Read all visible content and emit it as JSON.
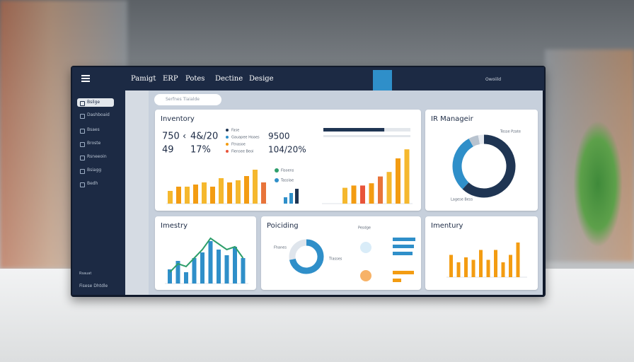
{
  "header": {
    "nav": [
      "Pamigt",
      "ERP",
      "Potes",
      "Dectine",
      "Desige"
    ],
    "user": "Owoiild"
  },
  "sidebar": {
    "items": [
      "Bsilge",
      "Dashboaid",
      "Bsaes",
      "Broste",
      "Rsneeoin",
      "Bsiagg",
      "Bedh"
    ],
    "footer": "Fisese Dhtdle",
    "footer_top": "Rsauat"
  },
  "search": {
    "placeholder": "Serfnes Tiaialde"
  },
  "panels": [
    {
      "title": "Inventory",
      "stats": [
        "750 ‹",
        "4&/20",
        "49",
        "17%"
      ],
      "kpis": [
        "9500",
        "104/20%"
      ],
      "legend": [
        {
          "name": "Fase",
          "color": "#1f3553"
        },
        {
          "name": "Gauapee Hoaes",
          "color": "#2f8fc9"
        },
        {
          "name": "Ftnasoe",
          "color": "#f39c12"
        },
        {
          "name": "Fiensee Beoi",
          "color": "#e8543a"
        }
      ],
      "progress": [
        70,
        100
      ],
      "bars_left": {
        "color": "#f4a623",
        "values": [
          6,
          8,
          8,
          9,
          10,
          8,
          12,
          10,
          11,
          13,
          16,
          10
        ]
      },
      "legend2": [
        {
          "name": "Fisoens",
          "color": "#2e9e6b"
        },
        {
          "name": "Tasslae",
          "color": "#2f8fc9"
        }
      ],
      "bars_small": {
        "color": "#1f3553",
        "values": [
          3,
          5,
          7
        ]
      },
      "bars_right": {
        "color": "#f5b82e",
        "values": [
          7,
          8,
          8,
          9,
          12,
          14,
          20,
          24
        ]
      }
    },
    {
      "title": "IR Manageir",
      "labels": [
        "Tesse Pzate",
        "Lagese Bess"
      ],
      "donut": {
        "values": [
          62,
          30,
          5,
          3
        ],
        "colors": [
          "#1f3553",
          "#2f8fc9",
          "#b8c3cf",
          "#e6eaf0"
        ]
      }
    },
    {
      "title": "Imestry",
      "bars": {
        "color": "#2f8fc9",
        "values": [
          5,
          8,
          4,
          9,
          11,
          15,
          12,
          10,
          13,
          9
        ]
      },
      "line": {
        "color": "#2e9e6b",
        "values": [
          4,
          7,
          6,
          9,
          12,
          16,
          14,
          12,
          13,
          9
        ]
      }
    },
    {
      "title": "Poiciding",
      "labels": [
        "Pesdge",
        "Fhanes",
        "Tlasses"
      ],
      "donut": {
        "values": [
          72,
          28
        ],
        "colors": [
          "#2f8fc9",
          "#dfe5ec"
        ]
      },
      "hbars_blue": {
        "color": "#2f8fc9",
        "values": [
          32,
          30,
          28
        ]
      },
      "hbars_orange": {
        "color": "#f39c12",
        "values": [
          30,
          12
        ]
      }
    },
    {
      "title": "Imentury",
      "bars": {
        "color": "#f39c12",
        "values": [
          9,
          6,
          8,
          7,
          11,
          7,
          11,
          6,
          9,
          14
        ]
      }
    }
  ]
}
